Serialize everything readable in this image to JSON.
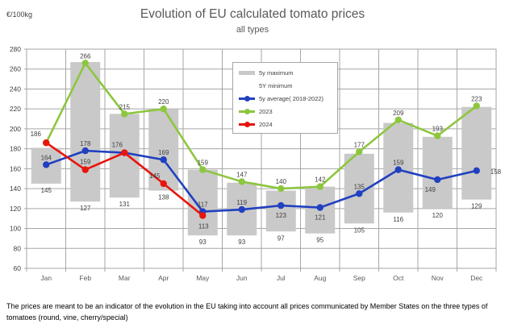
{
  "header": {
    "unit_label": "€/100kg",
    "title": "Evolution of EU calculated tomato prices",
    "subtitle": "all types"
  },
  "legend": {
    "items": [
      {
        "label": "5y maximum",
        "swatch": "gray-bar"
      },
      {
        "label": "5Y minimum",
        "swatch": "blank"
      },
      {
        "label": "5y average( 2018-2022)",
        "swatch": "line-marker",
        "color": "#2140c0"
      },
      {
        "label": "2023",
        "swatch": "line-marker",
        "color": "#8dc63f"
      },
      {
        "label": "2024",
        "swatch": "line-marker",
        "color": "#e8150d"
      }
    ]
  },
  "chart_data": {
    "type": "line",
    "title": "Evolution of EU calculated tomato prices",
    "subtitle": "all types",
    "ylabel": "€/100kg",
    "categories": [
      "Jan",
      "Feb",
      "Mar",
      "Apr",
      "May",
      "Jun",
      "Jul",
      "Aug",
      "Sep",
      "Oct",
      "Nov",
      "Dec"
    ],
    "y_axis": {
      "min": 60,
      "max": 280,
      "step": 20,
      "grid": true
    },
    "range_bars": {
      "name_max": "5y maximum",
      "name_min": "5Y minimum",
      "max": [
        181,
        267,
        215,
        220,
        159,
        146,
        138,
        142,
        175,
        206,
        192,
        222
      ],
      "min": [
        145,
        127,
        131,
        138,
        93,
        93,
        97,
        95,
        105,
        116,
        120,
        129
      ]
    },
    "series": [
      {
        "name": "5y average( 2018-2022)",
        "color": "#2140c0",
        "values": [
          164,
          178,
          176,
          169,
          117,
          119,
          123,
          121,
          135,
          159,
          149,
          158
        ]
      },
      {
        "name": "2023",
        "color": "#8dc63f",
        "values": [
          186,
          266,
          215,
          220,
          159,
          147,
          140,
          142,
          177,
          209,
          193,
          223
        ]
      },
      {
        "name": "2024",
        "color": "#e8150d",
        "values": [
          186,
          159,
          176,
          145,
          113,
          null,
          null,
          null,
          null,
          null,
          null,
          null
        ]
      }
    ],
    "legend_position": "top-center-inside",
    "colors": {
      "bar": "#c9c9c9",
      "grid": "#a6a6a6",
      "label_text": "#3f3f3f",
      "axis_text": "#595959",
      "title_text": "#595959"
    }
  },
  "caption": "The prices are meant to be an indicator of the evolution in the EU taking into account all prices communicated by Member States on the three types of tomatoes (round, vine, cherry/special)"
}
